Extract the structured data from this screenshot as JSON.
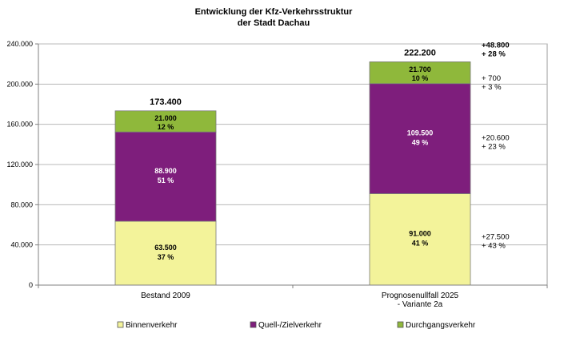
{
  "chart_data": {
    "type": "bar",
    "stacked": true,
    "title": [
      "Entwicklung der Kfz-Verkehrsstruktur",
      "der Stadt Dachau"
    ],
    "categories": [
      [
        "Bestand 2009"
      ],
      [
        "Prognosenullfall 2025",
        "- Variante 2a"
      ]
    ],
    "ylim": [
      0,
      240000
    ],
    "y_ticks": [
      {
        "value": 0,
        "label": "0"
      },
      {
        "value": 40000,
        "label": "40.000"
      },
      {
        "value": 80000,
        "label": "80.000"
      },
      {
        "value": 120000,
        "label": "120.000"
      },
      {
        "value": 160000,
        "label": "160.000"
      },
      {
        "value": 200000,
        "label": "200.000"
      },
      {
        "value": 240000,
        "label": "240.000"
      }
    ],
    "grid": true,
    "legend_position": "bottom",
    "series": [
      {
        "name": "Binnenverkehr",
        "color": "#f3f39a",
        "values": [
          63500,
          91000
        ],
        "value_labels": [
          "63.500",
          "91.000"
        ],
        "percent_labels": [
          "37 %",
          "41 %"
        ]
      },
      {
        "name": "Quell-/Zielverkehr",
        "color": "#7e1e7c",
        "values": [
          88900,
          109500
        ],
        "value_labels": [
          "88.900",
          "109.500"
        ],
        "percent_labels": [
          "51 %",
          "49 %"
        ]
      },
      {
        "name": "Durchgangsverkehr",
        "color": "#8fb83b",
        "values": [
          21000,
          21700
        ],
        "value_labels": [
          "21.000",
          "21.700"
        ],
        "percent_labels": [
          "12 %",
          "10 %"
        ]
      }
    ],
    "totals": [
      {
        "value": 173400,
        "label": "173.400"
      },
      {
        "value": 222200,
        "label": "222.200"
      }
    ],
    "changes": [
      {
        "lines": [
          "+48.800",
          "+ 28 %"
        ],
        "bold": true
      },
      {
        "lines": [
          "+ 700",
          "+ 3 %"
        ],
        "bold": false
      },
      {
        "lines": [
          "+20.600",
          "+ 23 %"
        ],
        "bold": false
      },
      {
        "lines": [
          "+27.500",
          "+ 43 %"
        ],
        "bold": false
      }
    ]
  }
}
